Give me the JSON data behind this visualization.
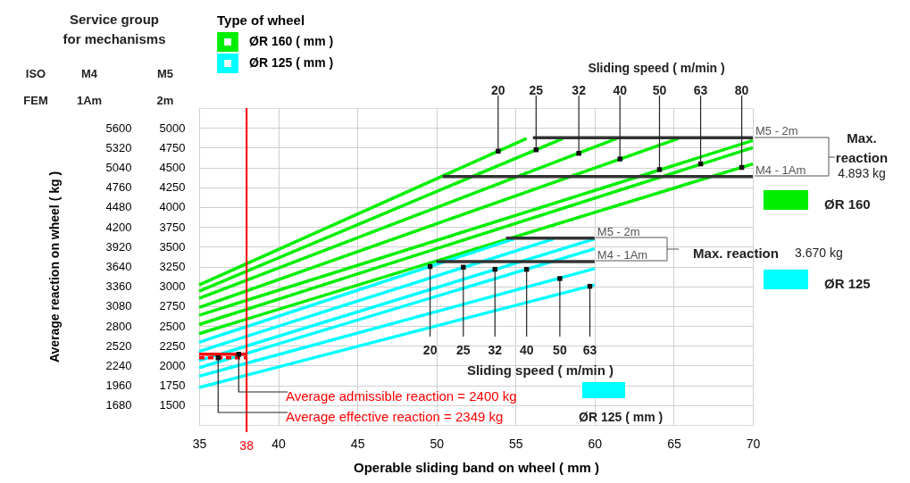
{
  "chart_data": {
    "type": "line",
    "xlabel": "Operable sliding band on wheel ( mm )",
    "ylabel": "Average reaction on wheel ( kg )",
    "xlim": [
      35,
      70
    ],
    "xticks": [
      35,
      40,
      45,
      50,
      55,
      60,
      65,
      70
    ],
    "ylim": [
      1400,
      5880
    ],
    "yticks": [
      1680,
      1960,
      2240,
      2520,
      2800,
      3080,
      3360,
      3640,
      3920,
      4200,
      4480,
      4760,
      5040,
      5320,
      5600
    ],
    "y2lim": [
      1250,
      5250
    ],
    "y2ticks": [
      1500,
      1750,
      2000,
      2250,
      2500,
      2750,
      3000,
      3250,
      3500,
      3750,
      4000,
      4250,
      4500,
      4750,
      5000
    ],
    "grid": true,
    "legend": "top left",
    "legend_title": "Type of wheel",
    "series": [
      {
        "name": "ØR 160 ( mm )",
        "color": "#00ee00",
        "x": [
          35,
          55.7
        ],
        "values": [
          3380,
          5450
        ]
      },
      {
        "color": "#00ee00",
        "x": [
          35,
          58.0
        ],
        "values": [
          3290,
          5450
        ]
      },
      {
        "color": "#00ee00",
        "x": [
          35,
          61.4
        ],
        "values": [
          3190,
          5450
        ]
      },
      {
        "color": "#00ee00",
        "x": [
          35,
          65.3
        ],
        "values": [
          3060,
          5450
        ]
      },
      {
        "color": "#00ee00",
        "x": [
          35,
          70
        ],
        "values": [
          2950,
          5420
        ]
      },
      {
        "color": "#00ee00",
        "x": [
          35,
          70
        ],
        "values": [
          2820,
          5320
        ]
      },
      {
        "color": "#00ee00",
        "x": [
          35,
          70
        ],
        "values": [
          2690,
          5090
        ]
      },
      {
        "name": "ØR 125 ( mm )",
        "color": "#00ffff",
        "x": [
          35,
          54.9
        ],
        "values": [
          2570,
          4030
        ]
      },
      {
        "color": "#00ffff",
        "x": [
          35,
          57.4
        ],
        "values": [
          2440,
          4030
        ]
      },
      {
        "color": "#00ffff",
        "x": [
          35,
          60
        ],
        "values": [
          2310,
          4030
        ]
      },
      {
        "color": "#00ffff",
        "x": [
          35,
          60
        ],
        "values": [
          2210,
          3890
        ]
      },
      {
        "color": "#00ffff",
        "x": [
          35,
          60
        ],
        "values": [
          2090,
          3610
        ]
      },
      {
        "color": "#00ffff",
        "x": [
          35,
          60
        ],
        "values": [
          1930,
          3380
        ]
      },
      {
        "name": "M5 - 2m",
        "color": "#333333",
        "x": [
          56.1,
          70
        ],
        "values": [
          5460,
          5460
        ]
      },
      {
        "name": "M4 - 1Am",
        "color": "#333333",
        "x": [
          50.4,
          70
        ],
        "values": [
          4910,
          4910
        ]
      },
      {
        "name": "M5 - 2m",
        "color": "#333333",
        "x": [
          54.4,
          60
        ],
        "values": [
          4040,
          4040
        ]
      },
      {
        "name": "M4 - 1Am",
        "color": "#333333",
        "x": [
          50,
          60
        ],
        "values": [
          3710,
          3710
        ]
      },
      {
        "color": "#ff0000",
        "x": [
          35,
          38
        ],
        "values": [
          2400,
          2400
        ]
      },
      {
        "color": "#ff0000",
        "x": [
          35,
          38
        ],
        "values": [
          2350,
          2350
        ],
        "line_style": "dashed"
      }
    ],
    "ref_lines": [
      {
        "axis": "x",
        "value": 38,
        "label": "38",
        "color": "#ff0000"
      }
    ],
    "annotations": [
      "Service group\nfor mechanisms",
      "ISO",
      "M4",
      "M5",
      "FEM",
      "1Am",
      "2m",
      "Sliding speed ( m/min )",
      "Max.\nreaction",
      "4.893 kg",
      "ØR 160",
      "Max. reaction",
      "3.670 kg",
      "ØR 125",
      "Sliding speed ( m/min )",
      "ØR 125 ( mm )",
      {
        "text": "20",
        "x": 53.9,
        "y": 5270
      },
      {
        "text": "25",
        "x": 56.3,
        "y": 5290
      },
      {
        "text": "32",
        "x": 59.0,
        "y": 5240
      },
      {
        "text": "40",
        "x": 61.6,
        "y": 5160
      },
      {
        "text": "50",
        "x": 64.1,
        "y": 5010
      },
      {
        "text": "63",
        "x": 66.7,
        "y": 5090
      },
      {
        "text": "80",
        "x": 69.3,
        "y": 5040
      },
      {
        "text": "20",
        "x": 49.6,
        "y": 3640
      },
      {
        "text": "25",
        "x": 51.7,
        "y": 3630
      },
      {
        "text": "32",
        "x": 53.7,
        "y": 3600
      },
      {
        "text": "40",
        "x": 55.7,
        "y": 3600
      },
      {
        "text": "50",
        "x": 57.8,
        "y": 3470
      },
      {
        "text": "63",
        "x": 59.7,
        "y": 3360
      },
      {
        "text": "Average admissible reaction = 2400 kg",
        "x": 37.5,
        "y": 2400
      },
      {
        "text": "Average effective reaction = 2349 kg",
        "x": 36.2,
        "y": 2350
      }
    ]
  }
}
